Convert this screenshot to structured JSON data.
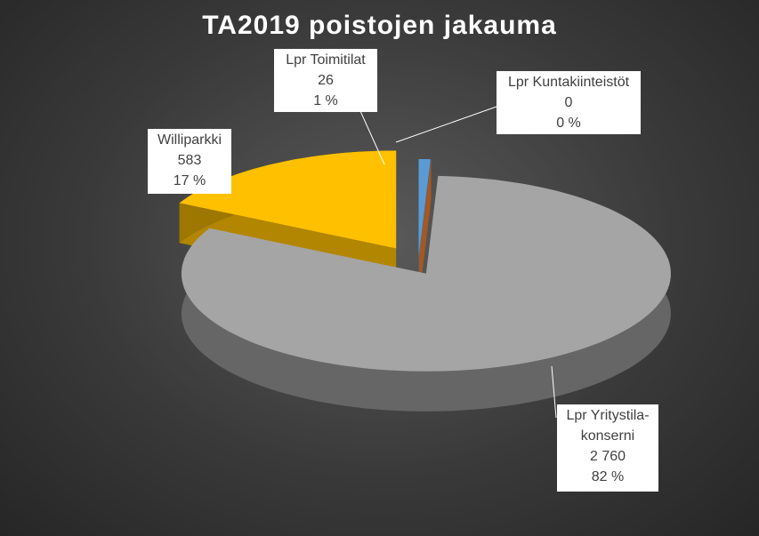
{
  "chart_data": {
    "type": "pie3d",
    "title": "TA2019 poistojen jakauma",
    "categories": [
      "Lpr Toimitilat",
      "Lpr Kuntakiinteistöt",
      "Lpr Yritystila-konserni",
      "Williparkki"
    ],
    "values": [
      26,
      0,
      2760,
      583
    ],
    "value_labels": [
      "26",
      "0",
      "2 760",
      "583"
    ],
    "percent_labels": [
      "1 %",
      "0 %",
      "82 %",
      "17 %"
    ],
    "colors": [
      "#5b9bd5",
      "#ed7d31",
      "#a5a5a5",
      "#ffc000"
    ]
  }
}
